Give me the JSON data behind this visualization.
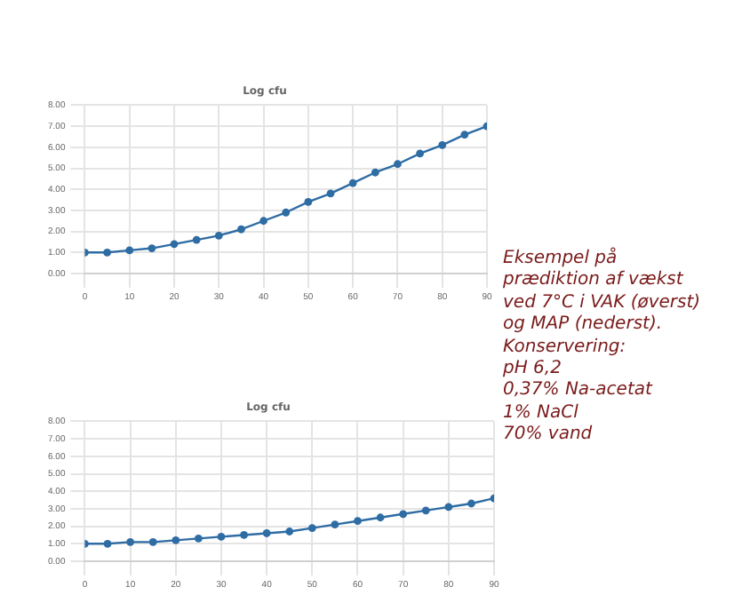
{
  "chart_data": [
    {
      "type": "line",
      "title": "Log cfu",
      "x": [
        0,
        5,
        10,
        15,
        20,
        25,
        30,
        35,
        40,
        45,
        50,
        55,
        60,
        65,
        70,
        75,
        80,
        85,
        90
      ],
      "series": [
        {
          "color": "#2e6ca4",
          "values": [
            1.0,
            1.0,
            1.1,
            1.2,
            1.4,
            1.6,
            1.8,
            2.1,
            2.5,
            2.9,
            3.4,
            3.8,
            4.3,
            4.8,
            5.2,
            5.7,
            6.1,
            6.6,
            7.0
          ]
        }
      ],
      "xlim": [
        0,
        90
      ],
      "xticks": [
        0,
        10,
        20,
        30,
        40,
        50,
        60,
        70,
        80,
        90
      ],
      "ylim": [
        0,
        8
      ],
      "yticks": [
        {
          "value": 0,
          "label": "0.00"
        },
        {
          "value": 1,
          "label": "1.00"
        },
        {
          "value": 2,
          "label": "2.00"
        },
        {
          "value": 3,
          "label": "3.00"
        },
        {
          "value": 4,
          "label": "4.00"
        },
        {
          "value": 5,
          "label": "5.00"
        },
        {
          "value": 6,
          "label": "6.00"
        },
        {
          "value": 7,
          "label": "7.00"
        },
        {
          "value": 8,
          "label": "8.00"
        }
      ],
      "grid": true,
      "legend": false,
      "marker": "circle",
      "line_style": "solid",
      "annotations": [
        "Eksempel på\nprædiktion af vækst\nved 7°C i VAK (øverst)\nog MAP (nederst).\nKonservering:\npH 6,2\n0,37% Na-acetat\n1% NaCl\n70% vand"
      ]
    },
    {
      "type": "line",
      "title": "Log cfu",
      "x": [
        0,
        5,
        10,
        15,
        20,
        25,
        30,
        35,
        40,
        45,
        50,
        55,
        60,
        65,
        70,
        75,
        80,
        85,
        90
      ],
      "series": [
        {
          "color": "#2e6ca4",
          "values": [
            1.0,
            1.0,
            1.1,
            1.1,
            1.2,
            1.3,
            1.4,
            1.5,
            1.6,
            1.7,
            1.9,
            2.1,
            2.3,
            2.5,
            2.7,
            2.9,
            3.1,
            3.3,
            3.6
          ]
        }
      ],
      "xlim": [
        0,
        90
      ],
      "xticks": [
        0,
        10,
        20,
        30,
        40,
        50,
        60,
        70,
        80,
        90
      ],
      "ylim": [
        0,
        8
      ],
      "yticks": [
        {
          "value": 0,
          "label": "0.00"
        },
        {
          "value": 1,
          "label": "1.00"
        },
        {
          "value": 2,
          "label": "2.00"
        },
        {
          "value": 3,
          "label": "3.00"
        },
        {
          "value": 4,
          "label": "4.00"
        },
        {
          "value": 5,
          "label": "5.00"
        },
        {
          "value": 6,
          "label": "6.00"
        },
        {
          "value": 7,
          "label": "7.00"
        },
        {
          "value": 8,
          "label": "8.00"
        }
      ],
      "grid": true,
      "legend": false,
      "marker": "circle",
      "line_style": "solid"
    }
  ]
}
